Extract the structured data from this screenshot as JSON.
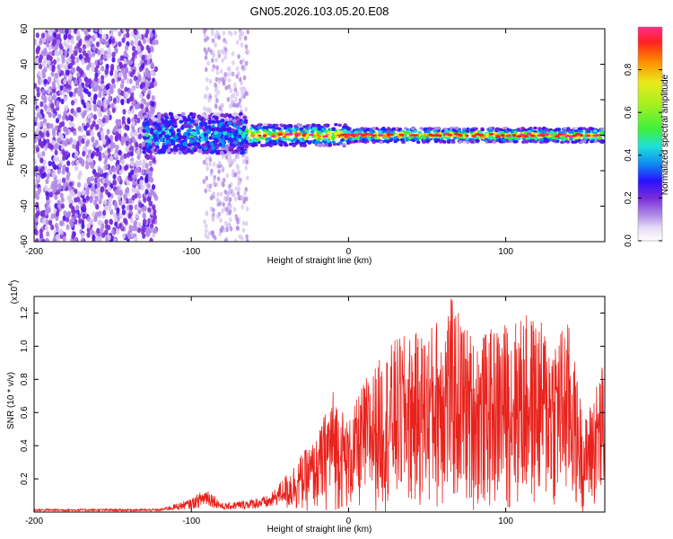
{
  "title": "GN05.2026.103.05.20.E08",
  "colors": {
    "snr_line": "#e8221c",
    "background": "#ffffff",
    "colormap": [
      "#ffffff",
      "#d8c8f2",
      "#b08ae6",
      "#7a2cd8",
      "#4a10ee",
      "#1e2cff",
      "#0d8cf0",
      "#22e0d8",
      "#3cf03c",
      "#eaea1c",
      "#ff8a00",
      "#ff2020",
      "#ff2d8a"
    ]
  },
  "chart_data": [
    {
      "type": "heatmap",
      "xlabel": "Height of straight line (km)",
      "ylabel": "Frequency (Hz)",
      "xlim": [
        -200,
        163
      ],
      "ylim": [
        -60,
        60
      ],
      "x_ticks": [
        "-200",
        "-100",
        "0",
        "100"
      ],
      "y_ticks": [
        "60",
        "40",
        "20",
        "0",
        "-20",
        "-40",
        "-60"
      ],
      "colorbar": {
        "label": "Normalized spectral amplitude",
        "range": [
          0,
          1
        ],
        "ticks": [
          "0.0",
          "0.2",
          "0.4",
          "0.6",
          "0.8"
        ]
      },
      "description_regions": [
        {
          "x_range": [
            -200,
            -130
          ],
          "y_range": [
            -60,
            60
          ],
          "level": 0.25
        },
        {
          "x_range": [
            -130,
            -65
          ],
          "y_range": [
            -10,
            12
          ],
          "level": 0.5
        },
        {
          "x_range": [
            -65,
            163
          ],
          "y_range": [
            -4,
            4
          ],
          "level": 0.85
        }
      ]
    },
    {
      "type": "line",
      "xlabel": "Height of straight line (km)",
      "ylabel": "SNR (10 * v/v)",
      "scale_label": "(x10",
      "scale_exp": "4",
      "xlim": [
        -200,
        163
      ],
      "ylim": [
        0,
        1.3
      ],
      "x_ticks": [
        "-200",
        "-100",
        "0",
        "100"
      ],
      "y_ticks": [
        "1.2",
        "1.0",
        "0.8",
        "0.6",
        "0.4",
        "0.2"
      ],
      "series": [
        {
          "envelope": [
            {
              "x": -200,
              "y": 0.02
            },
            {
              "x": -120,
              "y": 0.02
            },
            {
              "x": -100,
              "y": 0.08
            },
            {
              "x": -90,
              "y": 0.15
            },
            {
              "x": -80,
              "y": 0.05
            },
            {
              "x": -50,
              "y": 0.1
            },
            {
              "x": -30,
              "y": 0.35
            },
            {
              "x": -20,
              "y": 0.45
            },
            {
              "x": -10,
              "y": 0.75
            },
            {
              "x": 0,
              "y": 0.55
            },
            {
              "x": 10,
              "y": 0.8
            },
            {
              "x": 30,
              "y": 1.05
            },
            {
              "x": 50,
              "y": 1.1
            },
            {
              "x": 65,
              "y": 1.3
            },
            {
              "x": 80,
              "y": 1.05
            },
            {
              "x": 100,
              "y": 1.15
            },
            {
              "x": 115,
              "y": 1.2
            },
            {
              "x": 130,
              "y": 1.1
            },
            {
              "x": 140,
              "y": 1.15
            },
            {
              "x": 150,
              "y": 0.55
            },
            {
              "x": 163,
              "y": 0.95
            }
          ]
        }
      ]
    }
  ]
}
